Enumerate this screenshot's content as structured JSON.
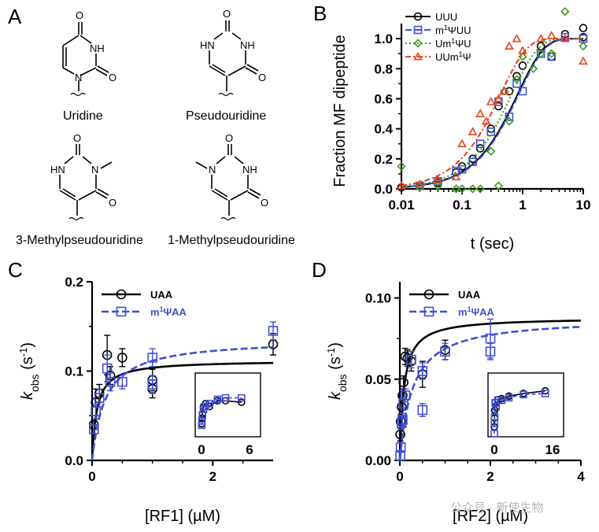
{
  "panels": {
    "a": "A",
    "b": "B",
    "c": "C",
    "d": "D"
  },
  "structures": {
    "uridine": "Uridine",
    "pseudouridine": "Pseudouridine",
    "methyl3": "3-Methylpseudouridine",
    "methyl1": "1-Methylpseudouridine",
    "atom_o": "O",
    "atom_nh": "NH",
    "atom_hn": "HN",
    "atom_n": "N"
  },
  "watermark": {
    "text": "公众号 · 新使生物"
  },
  "colors": {
    "black": "#000000",
    "blue": "#3f4fd6",
    "green": "#3d9a1f",
    "red": "#e8401c"
  },
  "chart_data": [
    {
      "panel": "B",
      "type": "scatter",
      "xlabel": "t (sec)",
      "ylabel": "Fraction MF dipeptide",
      "xscale": "log",
      "xlim": [
        0.01,
        10
      ],
      "ylim": [
        0,
        1.1
      ],
      "xticks": [
        0.01,
        0.1,
        1,
        10
      ],
      "xtick_labels": [
        "0.01",
        "0.1",
        "1",
        "10"
      ],
      "yticks": [
        0.0,
        0.2,
        0.4,
        0.6,
        0.8,
        1.0
      ],
      "ytick_labels": [
        "0.0",
        "0.2",
        "0.4",
        "0.6",
        "0.8",
        "1.0"
      ],
      "legend_position": "top-left",
      "series": [
        {
          "name": "UUU",
          "color": "#000000",
          "marker": "circle",
          "line": "solid",
          "x": [
            0.01,
            0.02,
            0.04,
            0.08,
            0.1,
            0.15,
            0.2,
            0.3,
            0.4,
            0.6,
            0.8,
            1,
            2,
            3,
            5,
            10,
            10
          ],
          "y": [
            0.01,
            0.02,
            0.04,
            0.11,
            0.15,
            0.2,
            0.27,
            0.4,
            0.55,
            0.65,
            0.75,
            0.82,
            0.95,
            0.88,
            1.03,
            1.07,
            1.01
          ],
          "fit": {
            "k": 1.2
          }
        },
        {
          "name": "m1ΨUU",
          "color": "#3f4fd6",
          "marker": "square",
          "line": "dash",
          "x": [
            0.02,
            0.04,
            0.08,
            0.1,
            0.15,
            0.2,
            0.3,
            0.4,
            0.6,
            0.8,
            1,
            2,
            3,
            5,
            10
          ],
          "y": [
            0.02,
            0.05,
            0.12,
            0.13,
            0.18,
            0.3,
            0.38,
            0.58,
            0.48,
            0.7,
            0.65,
            0.9,
            0.88,
            1.01,
            1.0
          ],
          "fit": {
            "k": 1.15
          }
        },
        {
          "name": "Um1ΨU",
          "color": "#3d9a1f",
          "marker": "diamond",
          "line": "dot",
          "x": [
            0.01,
            0.02,
            0.04,
            0.08,
            0.1,
            0.15,
            0.2,
            0.3,
            0.4,
            0.5,
            0.6,
            0.8,
            1,
            1.5,
            2,
            3,
            5,
            10
          ],
          "y": [
            0.15,
            0.01,
            0.02,
            0.0,
            0.0,
            0.0,
            0.0,
            0.25,
            0.02,
            0.65,
            0.45,
            0.73,
            0.88,
            0.8,
            0.9,
            0.9,
            1.18,
            0.95
          ],
          "fit": {
            "k": 1.5
          }
        },
        {
          "name": "UUm1Ψ",
          "color": "#e8401c",
          "marker": "triangle",
          "line": "dashdot",
          "x": [
            0.01,
            0.02,
            0.04,
            0.08,
            0.1,
            0.15,
            0.2,
            0.25,
            0.3,
            0.4,
            0.5,
            0.6,
            0.8,
            1,
            2,
            3,
            5,
            10
          ],
          "y": [
            0.02,
            0.03,
            0.06,
            0.08,
            0.3,
            0.38,
            0.5,
            0.45,
            0.58,
            0.6,
            0.65,
            0.95,
            1.0,
            0.92,
            1.0,
            1.02,
            1.0,
            0.85
          ],
          "fit": {
            "k": 2.3
          }
        }
      ],
      "legend_text": {
        "UUU": [
          "UUU"
        ],
        "m1ΨUU": [
          "m",
          "1",
          "ΨUU"
        ],
        "Um1ΨU": [
          "Um",
          "1",
          "ΨU"
        ],
        "UUm1Ψ": [
          "UUm",
          "1",
          "Ψ"
        ]
      }
    },
    {
      "panel": "C",
      "type": "scatter",
      "xlabel": "[RF1] (µM)",
      "ylabel_main": "k",
      "ylabel_sub": "obs",
      "ylabel_tail": " (s",
      "ylabel_sup": "-1",
      "ylabel_end": ")",
      "xlim": [
        0,
        3
      ],
      "ylim": [
        0,
        0.2
      ],
      "xticks": [
        0,
        2
      ],
      "xtick_labels": [
        "0",
        "2"
      ],
      "yticks": [
        0.0,
        0.1,
        0.2
      ],
      "ytick_labels": [
        "0.0",
        "0.1",
        "0.2"
      ],
      "legend_position": "top-left",
      "series": [
        {
          "name": "UAA",
          "color": "#000000",
          "marker": "circle",
          "line": "solid",
          "x": [
            0.03,
            0.06,
            0.12,
            0.25,
            0.3,
            0.5,
            1.0,
            1.0,
            3.0
          ],
          "y": [
            0.04,
            0.065,
            0.075,
            0.118,
            0.095,
            0.115,
            0.09,
            0.08,
            0.13
          ],
          "err": [
            0.005,
            0.015,
            0.01,
            0.022,
            0.01,
            0.01,
            0.012,
            0.01,
            0.012
          ],
          "fit": {
            "vmax": 0.112,
            "kd": 0.08
          }
        },
        {
          "name": "m1ΨAA",
          "color": "#3f4fd6",
          "marker": "square",
          "line": "dash",
          "x": [
            0.03,
            0.06,
            0.12,
            0.25,
            0.3,
            0.5,
            1.0,
            1.0,
            3.0
          ],
          "y": [
            0.035,
            0.055,
            0.07,
            0.103,
            0.088,
            0.088,
            0.115,
            0.085,
            0.145
          ],
          "err": [
            0.005,
            0.008,
            0.01,
            0.015,
            0.01,
            0.008,
            0.01,
            0.01,
            0.01
          ],
          "fit": {
            "vmax": 0.136,
            "kd": 0.22
          }
        }
      ],
      "legend_text": {
        "UAA": [
          "UAA"
        ],
        "m1ΨAA": [
          "m",
          "1",
          "ΨAA"
        ]
      },
      "inset": {
        "xlim": [
          0,
          6
        ],
        "xtick_labels": [
          "0",
          "6"
        ],
        "series": [
          {
            "color": "#000000",
            "marker": "circle",
            "x": [
              0.03,
              0.06,
              0.12,
              0.25,
              0.5,
              1,
              2,
              3,
              5
            ],
            "y": [
              0.04,
              0.06,
              0.075,
              0.1,
              0.11,
              0.1,
              0.12,
              0.12,
              0.115
            ]
          },
          {
            "color": "#3f4fd6",
            "marker": "square",
            "x": [
              0.03,
              0.06,
              0.12,
              0.25,
              0.5,
              1,
              2,
              3,
              5
            ],
            "y": [
              0.035,
              0.05,
              0.07,
              0.09,
              0.1,
              0.11,
              0.125,
              0.13,
              0.13
            ]
          }
        ]
      }
    },
    {
      "panel": "D",
      "type": "scatter",
      "xlabel": "[RF2] (µM)",
      "ylabel_main": "k",
      "ylabel_sub": "obs",
      "ylabel_tail": " (s",
      "ylabel_sup": "-1",
      "ylabel_end": ")",
      "xlim": [
        0,
        4
      ],
      "ylim": [
        0,
        0.11
      ],
      "xticks": [
        0,
        2,
        4
      ],
      "xtick_labels": [
        "0",
        "2",
        "4"
      ],
      "yticks": [
        0.0,
        0.05,
        0.1
      ],
      "ytick_labels": [
        "0.00",
        "0.05",
        "0.10"
      ],
      "legend_position": "top-left",
      "series": [
        {
          "name": "UAA",
          "color": "#000000",
          "marker": "circle",
          "line": "solid",
          "x": [
            0.01,
            0.02,
            0.04,
            0.06,
            0.08,
            0.12,
            0.17,
            0.25,
            0.5,
            1.0
          ],
          "y": [
            0.016,
            0.024,
            0.033,
            0.04,
            0.048,
            0.064,
            0.063,
            0.061,
            0.053,
            0.068
          ],
          "err": [
            0.004,
            0.004,
            0.004,
            0.004,
            0.004,
            0.005,
            0.005,
            0.006,
            0.008,
            0.006
          ],
          "fit": {
            "vmax": 0.088,
            "kd": 0.09
          }
        },
        {
          "name": "m1ΨAA",
          "color": "#3f4fd6",
          "marker": "square",
          "line": "dash",
          "x": [
            0.01,
            0.02,
            0.04,
            0.06,
            0.08,
            0.12,
            0.25,
            0.5,
            0.5,
            1.0,
            2.0,
            2.0
          ],
          "y": [
            0.003,
            0.008,
            0.023,
            0.025,
            0.035,
            0.04,
            0.062,
            0.055,
            0.031,
            0.067,
            0.075,
            0.067
          ],
          "err": [
            0.003,
            0.003,
            0.004,
            0.004,
            0.004,
            0.004,
            0.005,
            0.005,
            0.004,
            0.005,
            0.012,
            0.005
          ],
          "fit": {
            "vmax": 0.088,
            "kd": 0.28
          }
        }
      ],
      "legend_text": {
        "UAA": [
          "UAA"
        ],
        "m1ΨAA": [
          "m",
          "1",
          "ΨAA"
        ]
      },
      "inset": {
        "xlim": [
          0,
          16
        ],
        "xtick_labels": [
          "0",
          "16"
        ],
        "series": [
          {
            "color": "#000000",
            "marker": "circle",
            "x": [
              0.01,
              0.05,
              0.1,
              0.25,
              0.5,
              1,
              2,
              4,
              8,
              14
            ],
            "y": [
              0.016,
              0.033,
              0.048,
              0.063,
              0.053,
              0.068,
              0.07,
              0.075,
              0.08,
              0.085
            ]
          },
          {
            "color": "#3f4fd6",
            "marker": "square",
            "x": [
              0.01,
              0.05,
              0.1,
              0.25,
              0.5,
              1,
              2,
              4,
              8,
              14
            ],
            "y": [
              0.003,
              0.023,
              0.035,
              0.062,
              0.055,
              0.067,
              0.067,
              0.072,
              0.078,
              0.08
            ]
          }
        ]
      }
    }
  ]
}
